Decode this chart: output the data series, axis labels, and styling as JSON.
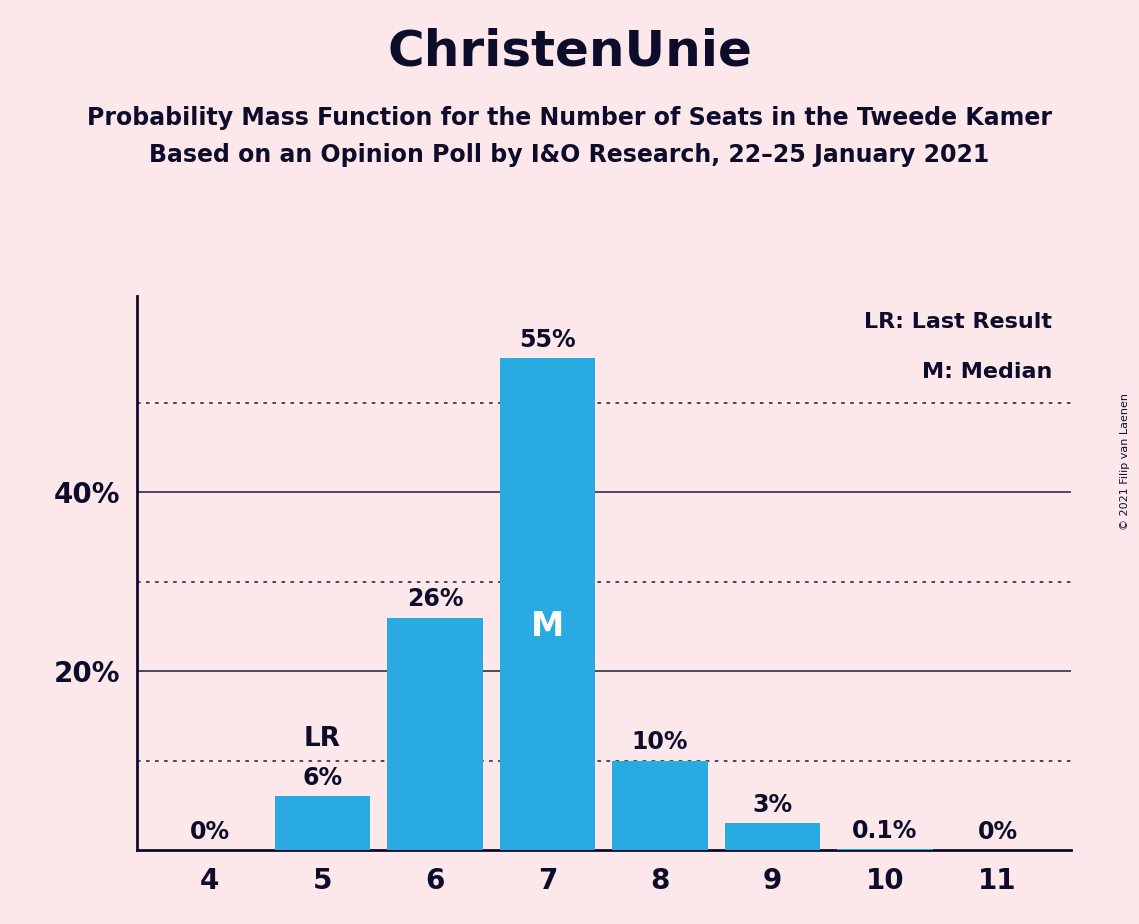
{
  "title": "ChristenUnie",
  "subtitle1": "Probability Mass Function for the Number of Seats in the Tweede Kamer",
  "subtitle2": "Based on an Opinion Poll by I&O Research, 22–25 January 2021",
  "copyright": "© 2021 Filip van Laenen",
  "seats": [
    4,
    5,
    6,
    7,
    8,
    9,
    10,
    11
  ],
  "probabilities": [
    0.0,
    6.0,
    26.0,
    55.0,
    10.0,
    3.0,
    0.1,
    0.0
  ],
  "bar_labels": [
    "0%",
    "6%",
    "26%",
    "55%",
    "10%",
    "3%",
    "0.1%",
    "0%"
  ],
  "bar_color": "#29abe2",
  "background_color": "#fce8ea",
  "text_color": "#0d0d2b",
  "lr_seat": 5,
  "median_seat": 7,
  "lr_label": "LR",
  "median_label": "M",
  "legend_lr": "LR: Last Result",
  "legend_m": "M: Median",
  "ylim": [
    0,
    62
  ],
  "dotted_gridlines": [
    10,
    30,
    50
  ],
  "solid_gridlines": [
    20,
    40
  ],
  "bar_width": 0.85
}
